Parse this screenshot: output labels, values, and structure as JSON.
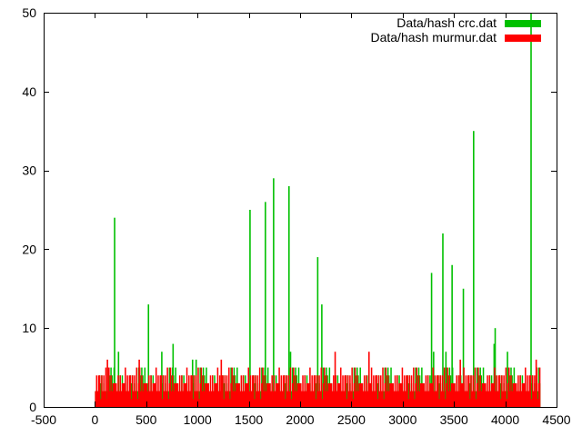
{
  "chart_data": {
    "type": "bar",
    "title": "",
    "xlabel": "",
    "ylabel": "",
    "xlim": [
      -500,
      4500
    ],
    "ylim": [
      0,
      50
    ],
    "xticks": [
      -500,
      0,
      500,
      1000,
      1500,
      2000,
      2500,
      3000,
      3500,
      4000,
      4500
    ],
    "yticks": [
      0,
      10,
      20,
      30,
      40,
      50
    ],
    "grid": false,
    "legend": "top-right",
    "x_range": [
      0,
      4330
    ],
    "series": [
      {
        "name": "Data/hash crc.dat",
        "color": "#00c000",
        "baseline_pattern": [
          2,
          3,
          4,
          2,
          1,
          3,
          5,
          2,
          4,
          3,
          2,
          1,
          4,
          3,
          2,
          5,
          3,
          2,
          4,
          1,
          3,
          2,
          4,
          3,
          5,
          2,
          3,
          1,
          4,
          2
        ],
        "spikes": [
          {
            "x": 190,
            "y": 24
          },
          {
            "x": 228,
            "y": 7
          },
          {
            "x": 520,
            "y": 13
          },
          {
            "x": 650,
            "y": 7
          },
          {
            "x": 760,
            "y": 8
          },
          {
            "x": 950,
            "y": 6
          },
          {
            "x": 985,
            "y": 6
          },
          {
            "x": 1510,
            "y": 25
          },
          {
            "x": 1660,
            "y": 26
          },
          {
            "x": 1740,
            "y": 29
          },
          {
            "x": 1890,
            "y": 28
          },
          {
            "x": 1905,
            "y": 7
          },
          {
            "x": 2170,
            "y": 19
          },
          {
            "x": 2210,
            "y": 13
          },
          {
            "x": 3280,
            "y": 17
          },
          {
            "x": 3300,
            "y": 7
          },
          {
            "x": 3390,
            "y": 22
          },
          {
            "x": 3420,
            "y": 7
          },
          {
            "x": 3480,
            "y": 18
          },
          {
            "x": 3590,
            "y": 15
          },
          {
            "x": 3690,
            "y": 35
          },
          {
            "x": 3890,
            "y": 8
          },
          {
            "x": 3900,
            "y": 10
          },
          {
            "x": 4020,
            "y": 7
          },
          {
            "x": 4250,
            "y": 50
          }
        ]
      },
      {
        "name": "Data/hash murmur.dat",
        "color": "#ff0000",
        "baseline_pattern": [
          2,
          4,
          3,
          2,
          5,
          3,
          2,
          4,
          1,
          3,
          4,
          2,
          3,
          5,
          2,
          4,
          3,
          2,
          4,
          3,
          1,
          4,
          2,
          3,
          4,
          2,
          5,
          3,
          2,
          4
        ],
        "spikes": [
          {
            "x": 120,
            "y": 6
          },
          {
            "x": 430,
            "y": 6
          },
          {
            "x": 1230,
            "y": 6
          },
          {
            "x": 2340,
            "y": 7
          },
          {
            "x": 2670,
            "y": 7
          },
          {
            "x": 3560,
            "y": 6
          },
          {
            "x": 4300,
            "y": 6
          }
        ]
      }
    ]
  }
}
